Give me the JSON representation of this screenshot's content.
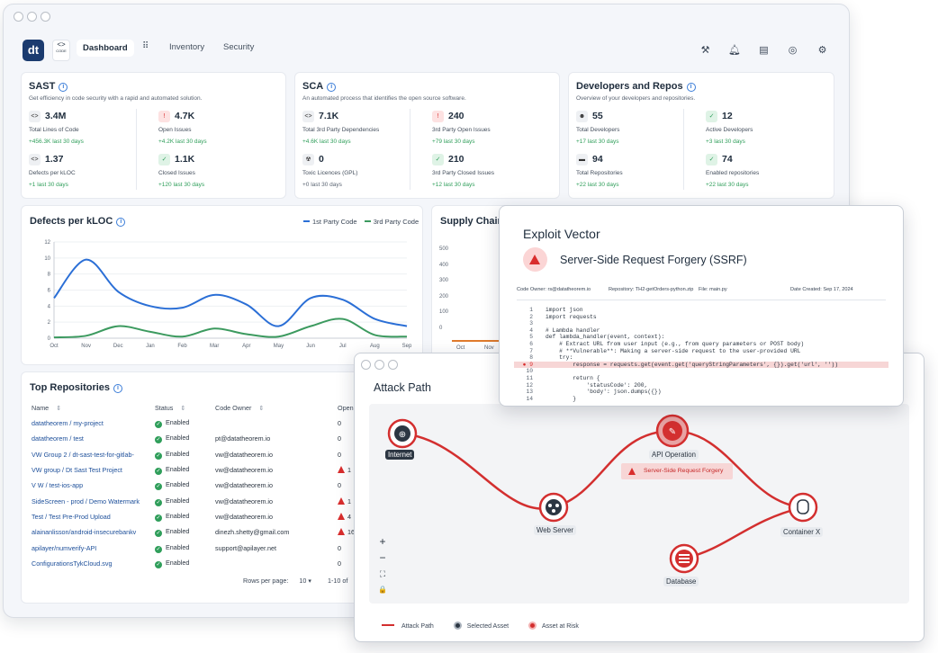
{
  "nav": {
    "logo": "dt",
    "code_logo": "<>",
    "dashboard": "Dashboard",
    "inventory": "Inventory",
    "security": "Security"
  },
  "toolbar_icons": [
    "gavel-icon",
    "bell-icon",
    "docs-icon",
    "fingerprint-icon",
    "gear-icon"
  ],
  "sast": {
    "title": "SAST",
    "subtitle": "Get efficiency in code security with a rapid and automated solution.",
    "metrics": [
      {
        "value": "3.4M",
        "label": "Total Lines of Code",
        "delta": "+456.3K last 30 days",
        "icon": "<>"
      },
      {
        "value": "4.7K",
        "label": "Open Issues",
        "delta": "+4.2K last 30 days",
        "icon": "!"
      },
      {
        "value": "1.37",
        "label": "Defects per kLOC",
        "delta": "+1 last 30 days",
        "icon": "<>"
      },
      {
        "value": "1.1K",
        "label": "Closed Issues",
        "delta": "+120 last 30 days",
        "icon": "✓"
      }
    ]
  },
  "sca": {
    "title": "SCA",
    "subtitle": "An automated process that identifies the open source software.",
    "metrics": [
      {
        "value": "7.1K",
        "label": "Total 3rd Party Dependencies",
        "delta": "+4.6K last 30 days",
        "icon": "<>"
      },
      {
        "value": "240",
        "label": "3rd Party Open Issues",
        "delta": "+79 last 30 days",
        "icon": "!"
      },
      {
        "value": "0",
        "label": "Toxic Licences (GPL)",
        "delta": "+0 last 30 days",
        "icon": "☢"
      },
      {
        "value": "210",
        "label": "3rd Party Closed Issues",
        "delta": "+12 last 30 days",
        "icon": "✓"
      }
    ]
  },
  "devs": {
    "title": "Developers and Repos",
    "subtitle": "Overview of your developers and repositories.",
    "metrics": [
      {
        "value": "55",
        "label": "Total Developers",
        "delta": "+17 last 30 days",
        "icon": "☻"
      },
      {
        "value": "12",
        "label": "Active Developers",
        "delta": "+3 last 30 days",
        "icon": "✓"
      },
      {
        "value": "94",
        "label": "Total Repositories",
        "delta": "+22 last 30 days",
        "icon": "▬"
      },
      {
        "value": "74",
        "label": "Enabled repositories",
        "delta": "+22 last 30 days",
        "icon": "✓"
      }
    ]
  },
  "defects_chart": {
    "title": "Defects per kLOC",
    "legend_1": "1st Party Code",
    "legend_2": "3rd Party Code",
    "color_1": "#2b6fd6",
    "color_2": "#3c9a5f"
  },
  "chart_data": {
    "type": "line",
    "categories": [
      "Oct",
      "Nov",
      "Dec",
      "Jan",
      "Feb",
      "Mar",
      "Apr",
      "May",
      "Jun",
      "Jul",
      "Aug",
      "Sep"
    ],
    "series": [
      {
        "name": "1st Party Code",
        "values": [
          5.0,
          9.8,
          5.8,
          4.0,
          3.8,
          5.4,
          4.2,
          1.5,
          5.0,
          4.8,
          2.4,
          1.5
        ]
      },
      {
        "name": "3rd Party Code",
        "values": [
          0.1,
          0.3,
          1.5,
          0.8,
          0.2,
          1.2,
          0.5,
          0.2,
          1.5,
          2.4,
          0.4,
          0.2
        ]
      }
    ],
    "yticks": [
      0,
      2,
      4,
      6,
      8,
      10,
      12
    ],
    "ylim": [
      0,
      12
    ]
  },
  "supply_chain": {
    "title": "Supply Chain",
    "yticks": [
      "500",
      "400",
      "300",
      "200",
      "100",
      "0"
    ],
    "xticks": [
      "Oct",
      "Nov"
    ]
  },
  "repos": {
    "title": "Top Repositories",
    "headers": {
      "name": "Name",
      "status": "Status",
      "owner": "Code Owner",
      "open": "Open I"
    },
    "rows": [
      {
        "name": "datatheorem / my-project",
        "status": "Enabled",
        "owner": "",
        "open": "0",
        "risk": false
      },
      {
        "name": "datatheorem / test",
        "status": "Enabled",
        "owner": "pt@datatheorem.io",
        "open": "0",
        "risk": false
      },
      {
        "name": "VW Group 2 / dt-sast-test-for-gitlab-",
        "status": "Enabled",
        "owner": "vw@datatheorem.io",
        "open": "0",
        "risk": false
      },
      {
        "name": "VW group / Dt Sast Test Project",
        "status": "Enabled",
        "owner": "vw@datatheorem.io",
        "open": "1",
        "risk": true
      },
      {
        "name": "V W / test-ios-app",
        "status": "Enabled",
        "owner": "vw@datatheorem.io",
        "open": "0",
        "risk": false
      },
      {
        "name": "SideScreen - prod / Demo Watermark",
        "status": "Enabled",
        "owner": "vw@datatheorem.io",
        "open": "1",
        "risk": true
      },
      {
        "name": "Test / Test Pre-Prod Upload",
        "status": "Enabled",
        "owner": "vw@datatheorem.io",
        "open": "4",
        "risk": true
      },
      {
        "name": "alainanlisson/android-insecurebankv",
        "status": "Enabled",
        "owner": "dinezh.shetty@gmail.com",
        "open": "16",
        "risk": true
      },
      {
        "name": "apilayer/numverify-API",
        "status": "Enabled",
        "owner": "support@apilayer.net",
        "open": "0",
        "risk": false
      },
      {
        "name": "ConfigurationsTykCloud.svg",
        "status": "Enabled",
        "owner": "",
        "open": "0",
        "risk": false
      }
    ],
    "rows_per_page_label": "Rows per page:",
    "rows_per_page": "10",
    "range": "1-10 of"
  },
  "exploit": {
    "title": "Exploit Vector",
    "vuln": "Server-Side Request Forgery (SSRF)",
    "code_owner": "Code Owner: rs@datatheorem.io",
    "repository": "Repository: TH2-getOrders-python.zip",
    "file": "File: main.py",
    "date": "Date Created: Sep 17, 2024",
    "code_lines": [
      {
        "n": "1",
        "t": "import json"
      },
      {
        "n": "2",
        "t": "import requests"
      },
      {
        "n": "3",
        "t": ""
      },
      {
        "n": "4",
        "t": "# Lambda handler"
      },
      {
        "n": "5",
        "t": "def lambda_handler(event, context):"
      },
      {
        "n": "6",
        "t": "    # Extract URL from user input (e.g., from query parameters or POST body)"
      },
      {
        "n": "7",
        "t": "    # **Vulnerable**: Making a server-side request to the user-provided URL"
      },
      {
        "n": "8",
        "t": "    try:"
      },
      {
        "n": "9",
        "t": "        response = requests.get(event.get('queryStringParameters', {}).get('url', ''))"
      },
      {
        "n": "10",
        "t": ""
      },
      {
        "n": "11",
        "t": "        return {"
      },
      {
        "n": "12",
        "t": "            'statusCode': 200,"
      },
      {
        "n": "13",
        "t": "            'body': json.dumps({})"
      },
      {
        "n": "14",
        "t": "        }"
      }
    ]
  },
  "attack": {
    "title": "Attack Path",
    "nodes": {
      "internet": "Internet",
      "web_server": "Web Server",
      "api_operation": "API Operation",
      "container": "Container X",
      "database": "Database"
    },
    "risk_label": "Server-Side Request Forgery",
    "legend": {
      "path": "Attack Path",
      "selected": "Selected Asset",
      "risk": "Asset at Risk"
    },
    "controls": [
      "+",
      "−",
      "⛶",
      "🔒"
    ]
  }
}
